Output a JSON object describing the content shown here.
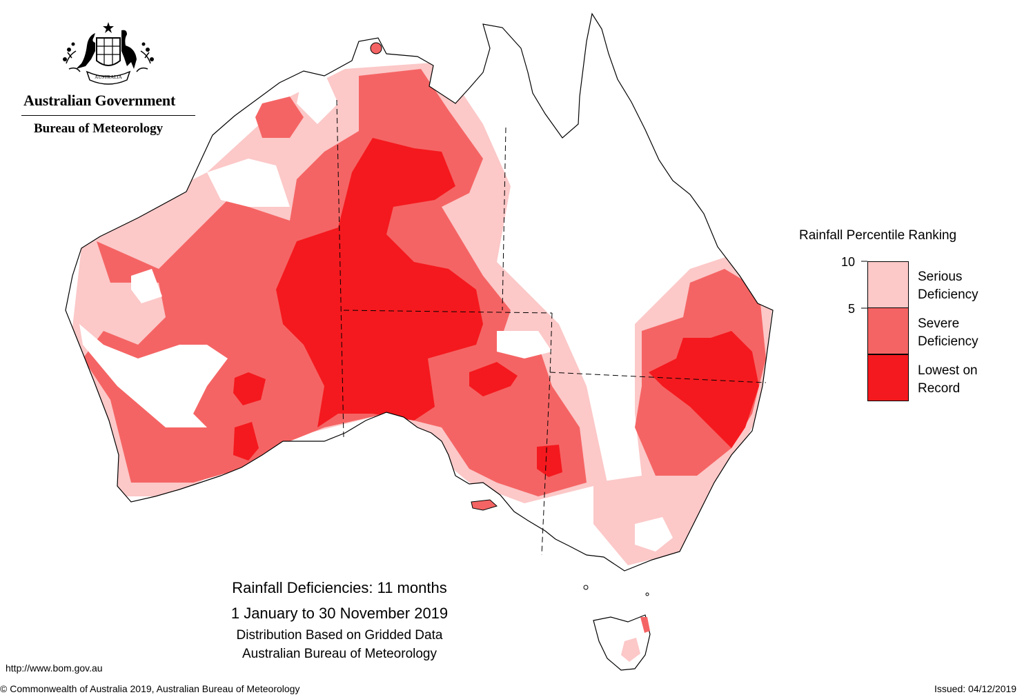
{
  "header": {
    "org": "Australian Government",
    "bureau": "Bureau of Meteorology",
    "crest_text": "AUSTRALIA"
  },
  "colors": {
    "serious": "#fcc8c8",
    "severe": "#f56464",
    "lowest": "#f4191e",
    "outline": "#000000"
  },
  "legend": {
    "title": "Rainfall Percentile Ranking",
    "ticks": [
      "10",
      "5"
    ],
    "items": [
      {
        "line1": "Serious",
        "line2": "Deficiency"
      },
      {
        "line1": "Severe",
        "line2": "Deficiency"
      },
      {
        "line1": "Lowest on",
        "line2": "Record"
      }
    ]
  },
  "caption": {
    "title": "Rainfall Deficiencies: 11 months",
    "period": "1 January to 30 November 2019",
    "line3": "Distribution Based on Gridded Data",
    "line4": "Australian Bureau of Meteorology"
  },
  "footer": {
    "url": "http://www.bom.gov.au",
    "copyright": "© Commonwealth of Australia 2019, Australian Bureau of Meteorology",
    "issued": "Issued: 04/12/2019"
  }
}
